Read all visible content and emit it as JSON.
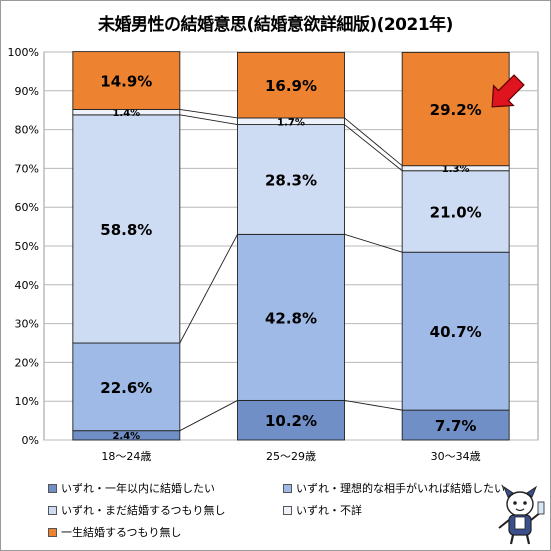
{
  "chart_data": {
    "type": "bar",
    "stacked": true,
    "title": "未婚男性の結婚意思(結婚意欲詳細版)(2021年)",
    "categories": [
      "18〜24歳",
      "25〜29歳",
      "30〜34歳"
    ],
    "ylim": [
      0,
      100
    ],
    "y_ticks": [
      "0%",
      "10%",
      "20%",
      "30%",
      "40%",
      "50%",
      "60%",
      "70%",
      "80%",
      "90%",
      "100%"
    ],
    "grid": true,
    "legend_position": "bottom",
    "series": [
      {
        "name": "いずれ・一年以内に結婚したい",
        "values": [
          2.4,
          10.2,
          7.7
        ],
        "labels": [
          "2.4%",
          "10.2%",
          "7.7%"
        ],
        "color": "#6f8fc6"
      },
      {
        "name": "いずれ・理想的な相手がいれば結婚したい",
        "values": [
          22.6,
          42.8,
          40.7
        ],
        "labels": [
          "22.6%",
          "42.8%",
          "40.7%"
        ],
        "color": "#9fbae6"
      },
      {
        "name": "いずれ・まだ結婚するつもり無し",
        "values": [
          58.8,
          28.3,
          21.0
        ],
        "labels": [
          "58.8%",
          "28.3%",
          "21.0%"
        ],
        "color": "#cddcf2"
      },
      {
        "name": "いずれ・不詳",
        "values": [
          1.4,
          1.7,
          1.3
        ],
        "labels": [
          "1.4%",
          "1.7%",
          "1.3%"
        ],
        "color": "#edf2fb"
      },
      {
        "name": "一生結婚するつもり無し",
        "values": [
          14.9,
          16.9,
          29.2
        ],
        "labels": [
          "14.9%",
          "16.9%",
          "29.2%"
        ],
        "color": "#ed8331"
      }
    ],
    "annotation": "arrow pointing to 30〜34歳 top segment"
  },
  "colors": {
    "arrow": "#e0141e",
    "grid": "#b8b8b8"
  },
  "icons": {
    "arrow": "red-arrow-icon",
    "mascot": "mascot-icon"
  }
}
